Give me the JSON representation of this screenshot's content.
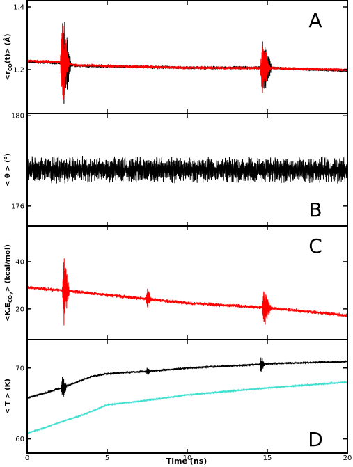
{
  "figure": {
    "x_label": "Time (ns)"
  },
  "chart_data": [
    {
      "panel": "A",
      "type": "line",
      "ylabel_parts": [
        "<r",
        "CO",
        "(t)",
        "> (Å)"
      ],
      "x_ticks": [
        0,
        5,
        10,
        15,
        20
      ],
      "y_ticks": [
        1.2,
        1.4
      ],
      "xlim": [
        0,
        20
      ],
      "ylim": [
        1.06,
        1.42
      ],
      "series": [
        {
          "color": "#000000",
          "base": [
            [
              0,
              1.225
            ],
            [
              2,
              1.222
            ],
            [
              3,
              1.212
            ],
            [
              10,
              1.206
            ],
            [
              15,
              1.206
            ],
            [
              20,
              1.196
            ]
          ],
          "noise": 0.004,
          "bursts": [
            [
              2.3,
              0.45,
              0.15
            ],
            [
              14.8,
              0.5,
              0.085
            ]
          ]
        },
        {
          "color": "#ff0000",
          "base": [
            [
              0,
              1.228
            ],
            [
              2,
              1.224
            ],
            [
              3,
              1.214
            ],
            [
              10,
              1.206
            ],
            [
              15,
              1.205
            ],
            [
              20,
              1.199
            ]
          ],
          "noise": 0.004,
          "bursts": [
            [
              2.2,
              0.45,
              0.13
            ],
            [
              14.7,
              0.5,
              0.09
            ]
          ]
        }
      ]
    },
    {
      "panel": "B",
      "type": "line",
      "ylabel_parts": [
        "< θ > (",
        "o",
        ")"
      ],
      "x_ticks": [
        0,
        5,
        10,
        15,
        20
      ],
      "y_ticks": [
        176,
        180
      ],
      "xlim": [
        0,
        20
      ],
      "ylim": [
        175.1,
        180.1
      ],
      "series": [
        {
          "color": "#000000",
          "base": [
            [
              0,
              177.6
            ],
            [
              20,
              177.6
            ]
          ],
          "noise": 0.42,
          "bursts": []
        }
      ]
    },
    {
      "panel": "C",
      "type": "line",
      "ylabel_parts": [
        "<K.E",
        "CO",
        "2",
        "> (kcal/mol)"
      ],
      "x_ticks": [
        0,
        5,
        10,
        15,
        20
      ],
      "y_ticks": [
        20,
        40
      ],
      "xlim": [
        0,
        20
      ],
      "ylim": [
        7,
        55
      ],
      "series": [
        {
          "color": "#ff0000",
          "base": [
            [
              0,
              29
            ],
            [
              2,
              28
            ],
            [
              7,
              24.5
            ],
            [
              10,
              22.5
            ],
            [
              15,
              20.5
            ],
            [
              20,
              17.2
            ]
          ],
          "noise": 0.6,
          "bursts": [
            [
              2.3,
              0.35,
              15
            ],
            [
              7.5,
              0.25,
              5
            ],
            [
              14.8,
              0.45,
              8
            ]
          ]
        }
      ]
    },
    {
      "panel": "D",
      "type": "line",
      "ylabel_parts": [
        "< T > (K)"
      ],
      "x_ticks": [
        0,
        5,
        10,
        15,
        20
      ],
      "y_ticks": [
        60,
        70
      ],
      "xlim": [
        0,
        20
      ],
      "ylim": [
        58,
        74
      ],
      "series": [
        {
          "color": "#000000",
          "base": [
            [
              0,
              65.8
            ],
            [
              1,
              66.4
            ],
            [
              2.3,
              67.3
            ],
            [
              4,
              68.8
            ],
            [
              5,
              69.2
            ],
            [
              8,
              69.6
            ],
            [
              10,
              70
            ],
            [
              14.5,
              70.5
            ],
            [
              15,
              70.6
            ],
            [
              20,
              70.9
            ]
          ],
          "noise": 0.12,
          "bursts": [
            [
              2.2,
              0.3,
              1.6
            ],
            [
              7.5,
              0.2,
              0.6
            ],
            [
              14.6,
              0.25,
              1.2
            ]
          ]
        },
        {
          "color": "#40e0d0",
          "base": [
            [
              0,
              60.8
            ],
            [
              1,
              61.5
            ],
            [
              2,
              62.3
            ],
            [
              3.5,
              63.4
            ],
            [
              5,
              64.8
            ],
            [
              7,
              65.3
            ],
            [
              10,
              66.2
            ],
            [
              15,
              67.2
            ],
            [
              20,
              68
            ]
          ],
          "noise": 0.1,
          "bursts": []
        }
      ]
    }
  ]
}
